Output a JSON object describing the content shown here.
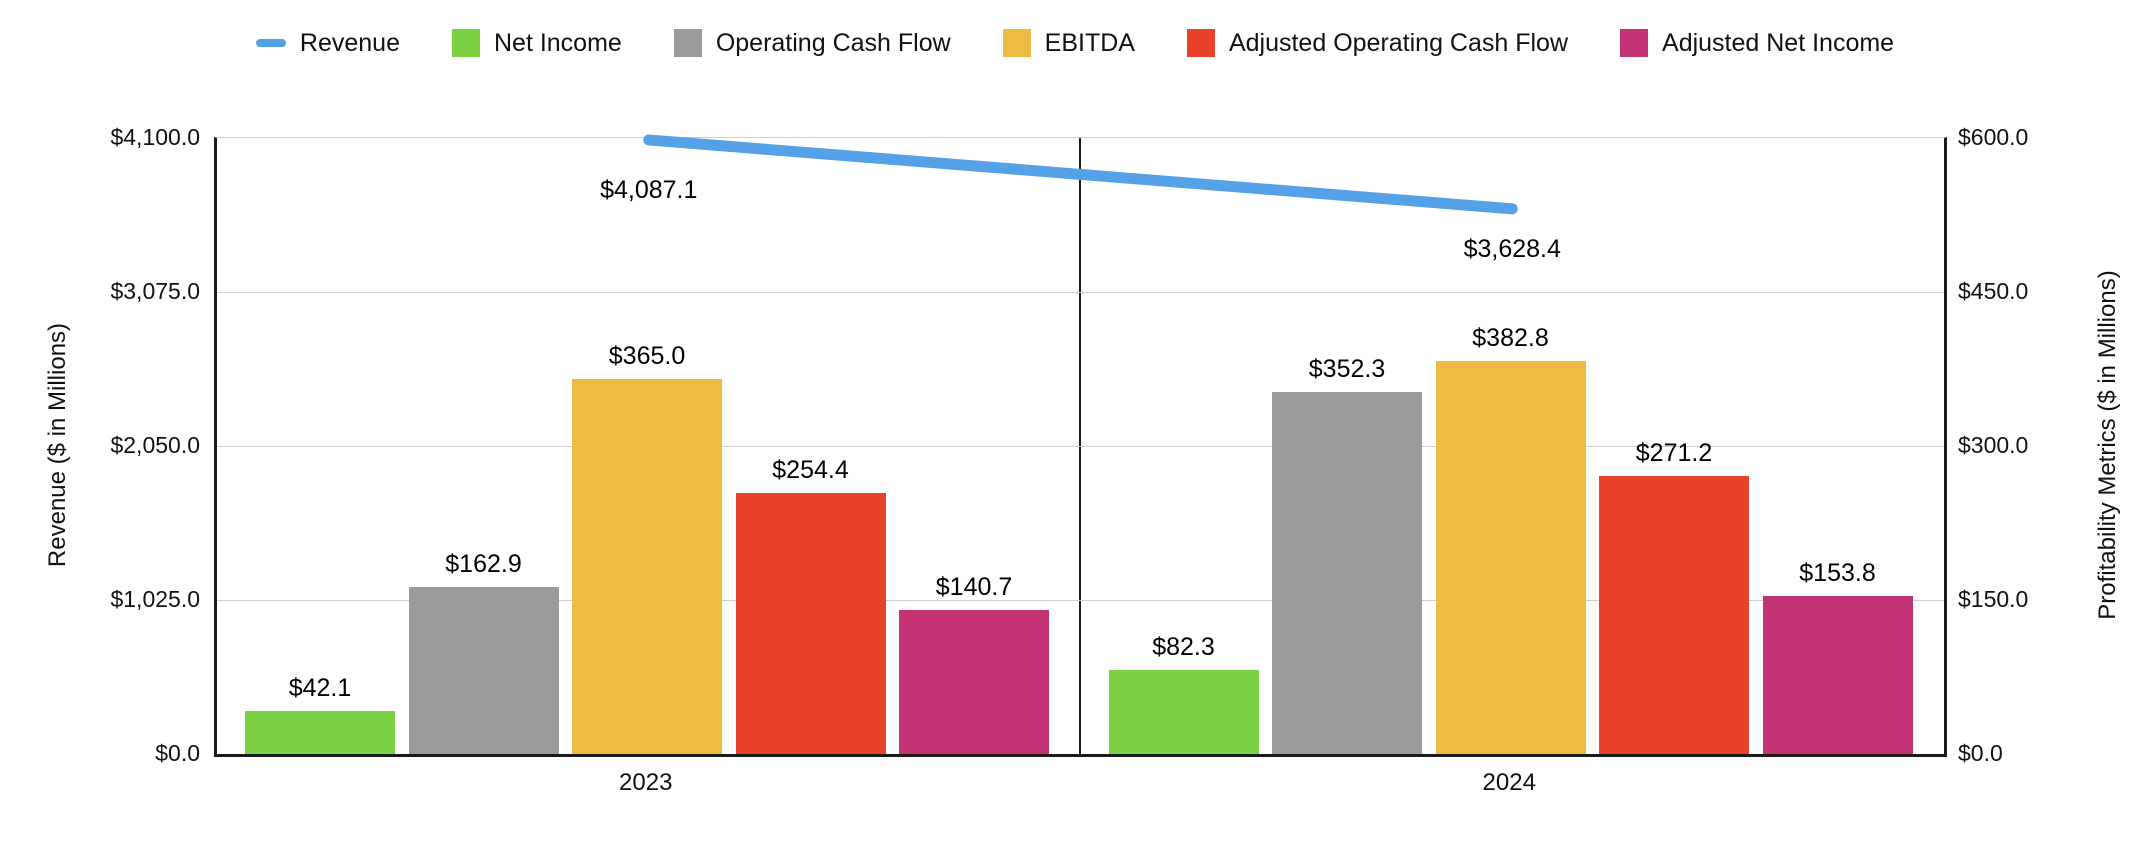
{
  "chart_data": {
    "type": "bar",
    "note": "grouped bar chart with secondary-axis line series, two year panels separated by a vertical divider",
    "categories": [
      "2023",
      "2024"
    ],
    "series": [
      {
        "name": "Revenue",
        "kind": "line",
        "axis": "left",
        "color": "#55A1E8",
        "values": [
          4087.1,
          3628.4
        ],
        "labels": [
          "$4,087.1",
          "$3,628.4"
        ]
      },
      {
        "name": "Net Income",
        "kind": "bar",
        "axis": "right",
        "color": "#7BD142",
        "values": [
          42.1,
          82.3
        ],
        "labels": [
          "$42.1",
          "$82.3"
        ]
      },
      {
        "name": "Operating Cash Flow",
        "kind": "bar",
        "axis": "right",
        "color": "#9A9A9A",
        "values": [
          162.9,
          352.3
        ],
        "labels": [
          "$162.9",
          "$352.3"
        ]
      },
      {
        "name": "EBITDA",
        "kind": "bar",
        "axis": "right",
        "color": "#EDBA43",
        "values": [
          365.0,
          382.8
        ],
        "labels": [
          "$365.0",
          "$382.8"
        ]
      },
      {
        "name": "Adjusted Operating Cash Flow",
        "kind": "bar",
        "axis": "right",
        "color": "#E74128",
        "values": [
          254.4,
          271.2
        ],
        "labels": [
          "$254.4",
          "$271.2"
        ]
      },
      {
        "name": "Adjusted Net Income",
        "kind": "bar",
        "axis": "right",
        "color": "#C53377",
        "values": [
          140.7,
          153.8
        ],
        "labels": [
          "$140.7",
          "$153.8"
        ]
      }
    ],
    "left_axis": {
      "title": "Revenue ($ in Millions)",
      "min": 0,
      "max": 4100,
      "ticks": [
        "$4,100.0",
        "$3,075.0",
        "$2,050.0",
        "$1,025.0",
        "$0.0"
      ]
    },
    "right_axis": {
      "title": "Profitability Metrics ($ in Millions)",
      "min": 0,
      "max": 600,
      "ticks": [
        "$600.0",
        "$450.0",
        "$300.0",
        "$150.0",
        "$0.0"
      ]
    },
    "grid": true,
    "legend_position": "top"
  },
  "colors": {
    "grid": "#cfcfcf",
    "axis_border": "#1a1a1a",
    "text": "#111111"
  }
}
